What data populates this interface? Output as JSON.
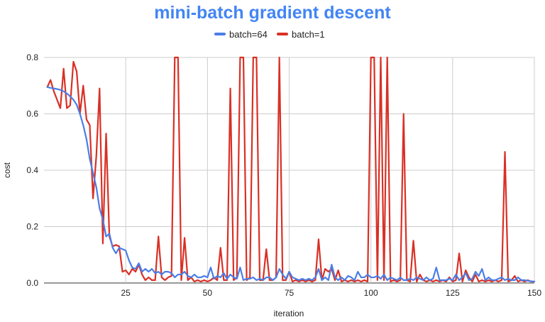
{
  "chart_data": {
    "type": "line",
    "title": "mini-batch gradient descent",
    "xlabel": "iteration",
    "ylabel": "cost",
    "xlim": [
      0,
      150
    ],
    "ylim": [
      0,
      0.8
    ],
    "x_ticks": [
      25,
      50,
      75,
      100,
      125,
      150
    ],
    "y_ticks": [
      0.0,
      0.2,
      0.4,
      0.6,
      0.8
    ],
    "x_tick_labels": [
      "25",
      "50",
      "75",
      "100",
      "125",
      "150"
    ],
    "y_tick_labels": [
      "0.0",
      "0.2",
      "0.4",
      "0.6",
      "0.8"
    ],
    "grid": true,
    "legend_position": "top",
    "series": [
      {
        "name": "batch=64",
        "color": "#4a7ee8",
        "points": [
          [
            1,
            0.695
          ],
          [
            2,
            0.692
          ],
          [
            3,
            0.69
          ],
          [
            4,
            0.688
          ],
          [
            5,
            0.685
          ],
          [
            6,
            0.68
          ],
          [
            7,
            0.672
          ],
          [
            8,
            0.662
          ],
          [
            9,
            0.65
          ],
          [
            10,
            0.632
          ],
          [
            11,
            0.6
          ],
          [
            12,
            0.56
          ],
          [
            13,
            0.51
          ],
          [
            14,
            0.44
          ],
          [
            15,
            0.39
          ],
          [
            16,
            0.34
          ],
          [
            17,
            0.265
          ],
          [
            18,
            0.225
          ],
          [
            19,
            0.165
          ],
          [
            20,
            0.175
          ],
          [
            21,
            0.125
          ],
          [
            22,
            0.105
          ],
          [
            23,
            0.125
          ],
          [
            24,
            0.12
          ],
          [
            25,
            0.115
          ],
          [
            26,
            0.08
          ],
          [
            27,
            0.055
          ],
          [
            28,
            0.05
          ],
          [
            29,
            0.07
          ],
          [
            30,
            0.04
          ],
          [
            31,
            0.05
          ],
          [
            32,
            0.04
          ],
          [
            33,
            0.05
          ],
          [
            34,
            0.035
          ],
          [
            35,
            0.04
          ],
          [
            36,
            0.03
          ],
          [
            37,
            0.04
          ],
          [
            38,
            0.04
          ],
          [
            39,
            0.035
          ],
          [
            40,
            0.02
          ],
          [
            41,
            0.03
          ],
          [
            42,
            0.03
          ],
          [
            43,
            0.04
          ],
          [
            44,
            0.025
          ],
          [
            45,
            0.02
          ],
          [
            46,
            0.03
          ],
          [
            47,
            0.02
          ],
          [
            48,
            0.02
          ],
          [
            49,
            0.025
          ],
          [
            50,
            0.02
          ],
          [
            51,
            0.055
          ],
          [
            52,
            0.015
          ],
          [
            53,
            0.025
          ],
          [
            54,
            0.02
          ],
          [
            55,
            0.035
          ],
          [
            56,
            0.015
          ],
          [
            57,
            0.03
          ],
          [
            58,
            0.02
          ],
          [
            59,
            0.015
          ],
          [
            60,
            0.055
          ],
          [
            61,
            0.01
          ],
          [
            62,
            0.015
          ],
          [
            63,
            0.015
          ],
          [
            64,
            0.02
          ],
          [
            65,
            0.01
          ],
          [
            66,
            0.015
          ],
          [
            67,
            0.01
          ],
          [
            68,
            0.02
          ],
          [
            69,
            0.02
          ],
          [
            70,
            0.01
          ],
          [
            71,
            0.02
          ],
          [
            72,
            0.05
          ],
          [
            73,
            0.03
          ],
          [
            74,
            0.015
          ],
          [
            75,
            0.04
          ],
          [
            76,
            0.02
          ],
          [
            77,
            0.015
          ],
          [
            78,
            0.01
          ],
          [
            79,
            0.015
          ],
          [
            80,
            0.01
          ],
          [
            81,
            0.015
          ],
          [
            82,
            0.01
          ],
          [
            83,
            0.02
          ],
          [
            84,
            0.05
          ],
          [
            85,
            0.01
          ],
          [
            86,
            0.02
          ],
          [
            87,
            0.01
          ],
          [
            88,
            0.065
          ],
          [
            89,
            0.02
          ],
          [
            90,
            0.01
          ],
          [
            91,
            0.02
          ],
          [
            92,
            0.01
          ],
          [
            93,
            0.025
          ],
          [
            94,
            0.02
          ],
          [
            95,
            0.01
          ],
          [
            96,
            0.04
          ],
          [
            97,
            0.02
          ],
          [
            98,
            0.02
          ],
          [
            99,
            0.03
          ],
          [
            100,
            0.02
          ],
          [
            101,
            0.02
          ],
          [
            102,
            0.025
          ],
          [
            103,
            0.015
          ],
          [
            104,
            0.03
          ],
          [
            105,
            0.01
          ],
          [
            106,
            0.02
          ],
          [
            107,
            0.015
          ],
          [
            108,
            0.01
          ],
          [
            109,
            0.02
          ],
          [
            110,
            0.01
          ],
          [
            111,
            0.01
          ],
          [
            112,
            0.015
          ],
          [
            113,
            0.01
          ],
          [
            114,
            0.02
          ],
          [
            115,
            0.015
          ],
          [
            116,
            0.01
          ],
          [
            117,
            0.02
          ],
          [
            118,
            0.01
          ],
          [
            119,
            0.015
          ],
          [
            120,
            0.055
          ],
          [
            121,
            0.01
          ],
          [
            122,
            0.01
          ],
          [
            123,
            0.01
          ],
          [
            124,
            0.015
          ],
          [
            125,
            0.01
          ],
          [
            126,
            0.03
          ],
          [
            127,
            0.01
          ],
          [
            128,
            0.02
          ],
          [
            129,
            0.035
          ],
          [
            130,
            0.01
          ],
          [
            131,
            0.015
          ],
          [
            132,
            0.04
          ],
          [
            133,
            0.025
          ],
          [
            134,
            0.05
          ],
          [
            135,
            0.01
          ],
          [
            136,
            0.02
          ],
          [
            137,
            0.01
          ],
          [
            138,
            0.01
          ],
          [
            139,
            0.015
          ],
          [
            140,
            0.02
          ],
          [
            141,
            0.01
          ],
          [
            142,
            0.015
          ],
          [
            143,
            0.01
          ],
          [
            144,
            0.01
          ],
          [
            145,
            0.02
          ],
          [
            146,
            0.01
          ],
          [
            147,
            0.01
          ],
          [
            148,
            0.008
          ],
          [
            149,
            0.006
          ],
          [
            150,
            0.005
          ]
        ]
      },
      {
        "name": "batch=1",
        "color": "#d93025",
        "points": [
          [
            1,
            0.695
          ],
          [
            2,
            0.72
          ],
          [
            3,
            0.68
          ],
          [
            4,
            0.65
          ],
          [
            5,
            0.62
          ],
          [
            6,
            0.76
          ],
          [
            7,
            0.62
          ],
          [
            8,
            0.63
          ],
          [
            9,
            0.785
          ],
          [
            10,
            0.75
          ],
          [
            11,
            0.6
          ],
          [
            12,
            0.7
          ],
          [
            13,
            0.58
          ],
          [
            14,
            0.56
          ],
          [
            15,
            0.3
          ],
          [
            16,
            0.45
          ],
          [
            17,
            0.69
          ],
          [
            18,
            0.14
          ],
          [
            19,
            0.53
          ],
          [
            20,
            0.165
          ],
          [
            21,
            0.13
          ],
          [
            22,
            0.135
          ],
          [
            23,
            0.13
          ],
          [
            24,
            0.04
          ],
          [
            25,
            0.045
          ],
          [
            26,
            0.03
          ],
          [
            27,
            0.05
          ],
          [
            28,
            0.04
          ],
          [
            29,
            0.065
          ],
          [
            30,
            0.03
          ],
          [
            31,
            0.01
          ],
          [
            32,
            0.02
          ],
          [
            33,
            0.01
          ],
          [
            34,
            0.01
          ],
          [
            35,
            0.165
          ],
          [
            36,
            0.02
          ],
          [
            37,
            0.01
          ],
          [
            38,
            0.02
          ],
          [
            39,
            0.025
          ],
          [
            40,
            0.8
          ],
          [
            41,
            0.8
          ],
          [
            42,
            0.01
          ],
          [
            43,
            0.16
          ],
          [
            44,
            0.01
          ],
          [
            45,
            0.02
          ],
          [
            46,
            0.005
          ],
          [
            47,
            0.01
          ],
          [
            48,
            0.005
          ],
          [
            49,
            0.01
          ],
          [
            50,
            0.005
          ],
          [
            51,
            0.01
          ],
          [
            52,
            0.02
          ],
          [
            53,
            0.01
          ],
          [
            54,
            0.125
          ],
          [
            55,
            0.01
          ],
          [
            56,
            0.01
          ],
          [
            57,
            0.69
          ],
          [
            58,
            0.01
          ],
          [
            59,
            0.02
          ],
          [
            60,
            0.8
          ],
          [
            61,
            0.8
          ],
          [
            62,
            0.01
          ],
          [
            63,
            0.02
          ],
          [
            64,
            0.8
          ],
          [
            65,
            0.8
          ],
          [
            66,
            0.01
          ],
          [
            67,
            0.01
          ],
          [
            68,
            0.12
          ],
          [
            69,
            0.01
          ],
          [
            70,
            0.01
          ],
          [
            71,
            0.02
          ],
          [
            72,
            0.8
          ],
          [
            73,
            0.01
          ],
          [
            74,
            0.01
          ],
          [
            75,
            0.04
          ],
          [
            76,
            0.005
          ],
          [
            77,
            0.01
          ],
          [
            78,
            0.005
          ],
          [
            79,
            0.01
          ],
          [
            80,
            0.005
          ],
          [
            81,
            0.01
          ],
          [
            82,
            0.005
          ],
          [
            83,
            0.01
          ],
          [
            84,
            0.155
          ],
          [
            85,
            0.01
          ],
          [
            86,
            0.05
          ],
          [
            87,
            0.04
          ],
          [
            88,
            0.05
          ],
          [
            89,
            0.01
          ],
          [
            90,
            0.045
          ],
          [
            91,
            0.005
          ],
          [
            92,
            0.01
          ],
          [
            93,
            0.005
          ],
          [
            94,
            0.01
          ],
          [
            95,
            0.005
          ],
          [
            96,
            0.01
          ],
          [
            97,
            0.005
          ],
          [
            98,
            0.01
          ],
          [
            99,
            0.005
          ],
          [
            100,
            0.8
          ],
          [
            101,
            0.8
          ],
          [
            102,
            0.01
          ],
          [
            103,
            0.8
          ],
          [
            104,
            0.01
          ],
          [
            105,
            0.8
          ],
          [
            106,
            0.005
          ],
          [
            107,
            0.01
          ],
          [
            108,
            0.005
          ],
          [
            109,
            0.01
          ],
          [
            110,
            0.6
          ],
          [
            111,
            0.01
          ],
          [
            112,
            0.005
          ],
          [
            113,
            0.15
          ],
          [
            114,
            0.005
          ],
          [
            115,
            0.03
          ],
          [
            116,
            0.01
          ],
          [
            117,
            0.005
          ],
          [
            118,
            0.01
          ],
          [
            119,
            0.005
          ],
          [
            120,
            0.01
          ],
          [
            121,
            0.005
          ],
          [
            122,
            0.01
          ],
          [
            123,
            0.005
          ],
          [
            124,
            0.02
          ],
          [
            125,
            0.005
          ],
          [
            126,
            0.01
          ],
          [
            127,
            0.105
          ],
          [
            128,
            0.005
          ],
          [
            129,
            0.045
          ],
          [
            130,
            0.02
          ],
          [
            131,
            0.005
          ],
          [
            132,
            0.03
          ],
          [
            133,
            0.005
          ],
          [
            134,
            0.01
          ],
          [
            135,
            0.005
          ],
          [
            136,
            0.01
          ],
          [
            137,
            0.005
          ],
          [
            138,
            0.01
          ],
          [
            139,
            0.005
          ],
          [
            140,
            0.01
          ],
          [
            141,
            0.465
          ],
          [
            142,
            0.005
          ],
          [
            143,
            0.01
          ],
          [
            144,
            0.025
          ],
          [
            145,
            0.005
          ],
          [
            146,
            0.01
          ],
          [
            147,
            0.005
          ],
          [
            148,
            0.01
          ],
          [
            149,
            0.005
          ],
          [
            150,
            0.005
          ]
        ]
      }
    ]
  }
}
